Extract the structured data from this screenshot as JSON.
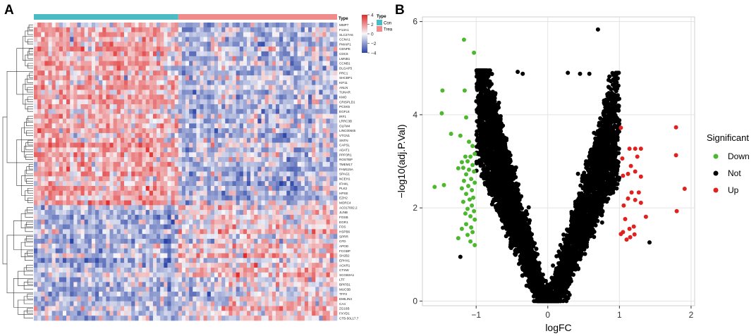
{
  "panels": {
    "a": "A",
    "b": "B"
  },
  "chart_data": [
    {
      "type": "heatmap",
      "title": "",
      "annotation": {
        "title": "Type",
        "groups": [
          {
            "name": "Con",
            "color": "#4DBBC4",
            "count": 40
          },
          {
            "name": "Trea",
            "color": "#F08B8B",
            "count": 44
          }
        ]
      },
      "colorbar": {
        "min": -4,
        "max": 4,
        "ticks": [
          4,
          2,
          0,
          -2,
          -4
        ],
        "low_color": "#2A43A6",
        "mid_color": "#F7F7FA",
        "high_color": "#E02A2A"
      },
      "genes": [
        "MMP7",
        "F13A1",
        "SLC27A6",
        "CCNA1",
        "PMAIP1",
        "CENPE",
        "CDC6",
        "LMNB1",
        "CCNB1",
        "DLGAP5",
        "PRC1",
        "SHCBP1",
        "KIF11",
        "ANLN",
        "TUNAR",
        "KMO",
        "CRISPLD1",
        "PCSK5",
        "EGFL6",
        "IRF1",
        "LRRC3B",
        "OLFM4",
        "LINC00645",
        "VTCN1",
        "SNTN",
        "CAPSL",
        "ADAT1",
        "PPP3R1",
        "ROSTBP",
        "TMEM17",
        "FAM115A",
        "SPAG1",
        "NCEH1",
        "IFI44L",
        "PLK2",
        "HPSE",
        "EZH2",
        "MORC4",
        "AC017002.2",
        "JUNB",
        "FOSB",
        "EGR1",
        "FOS",
        "HSPB6",
        "SPRR",
        "CFD",
        "APOD",
        "FCGBP",
        "SH2B2",
        "EPHX1",
        "ACKR1",
        "CTSW",
        "SCGB3A1",
        "LTF",
        "BPIFB1",
        "MUC5B",
        "TFF3",
        "EMILIN3",
        "CA4",
        "ZG16B",
        "FXYD1",
        "CTB-50L17.7"
      ]
    },
    {
      "type": "scatter",
      "subtype": "volcano",
      "xlabel": "logFC",
      "ylabel": "−log10(adj.P.Val)",
      "xlim": [
        -1.75,
        2.05
      ],
      "ylim": [
        -0.1,
        6.1
      ],
      "xticks": [
        -1,
        0,
        1,
        2
      ],
      "xtick_labels": [
        "−1",
        "0",
        "1",
        "2"
      ],
      "yticks": [
        0,
        2,
        4,
        6
      ],
      "grid": true,
      "legend": {
        "title": "Significant",
        "position": "right",
        "entries": [
          {
            "name": "Down",
            "color": "#4CB82E"
          },
          {
            "name": "Not",
            "color": "#000000"
          },
          {
            "name": "Up",
            "color": "#E0211F"
          }
        ]
      },
      "series": [
        {
          "name": "Down",
          "color": "#4CB82E",
          "points": [
            [
              -1.17,
              5.61
            ],
            [
              -1.03,
              5.33
            ],
            [
              -1.47,
              4.52
            ],
            [
              -1.16,
              4.52
            ],
            [
              -1.48,
              4.03
            ],
            [
              -1.14,
              3.94
            ],
            [
              -1.35,
              3.59
            ],
            [
              -1.22,
              3.55
            ],
            [
              -1.1,
              3.42
            ],
            [
              -1.05,
              3.33
            ],
            [
              -1.15,
              3.1
            ],
            [
              -1.08,
              3.1
            ],
            [
              -1.02,
              3.16
            ],
            [
              -1.12,
              3.0
            ],
            [
              -1.2,
              2.98
            ],
            [
              -1.05,
              2.92
            ],
            [
              -1.18,
              2.86
            ],
            [
              -1.1,
              2.82
            ],
            [
              -1.03,
              2.78
            ],
            [
              -1.25,
              2.85
            ],
            [
              -1.14,
              2.72
            ],
            [
              -1.07,
              2.62
            ],
            [
              -1.17,
              2.58
            ],
            [
              -1.02,
              2.54
            ],
            [
              -1.11,
              2.47
            ],
            [
              -1.2,
              2.42
            ],
            [
              -1.06,
              2.38
            ],
            [
              -1.58,
              2.45
            ],
            [
              -1.45,
              2.49
            ],
            [
              -1.14,
              2.3
            ],
            [
              -1.04,
              2.22
            ],
            [
              -1.09,
              2.18
            ],
            [
              -1.18,
              2.13
            ],
            [
              -1.06,
              2.05
            ],
            [
              -1.12,
              1.98
            ],
            [
              -1.03,
              1.93
            ],
            [
              -1.15,
              1.88
            ],
            [
              -1.08,
              1.82
            ],
            [
              -1.02,
              1.75
            ],
            [
              -1.14,
              1.65
            ],
            [
              -1.07,
              1.58
            ],
            [
              -1.2,
              1.55
            ],
            [
              -1.05,
              1.48
            ],
            [
              -1.12,
              1.42
            ],
            [
              -1.25,
              1.35
            ],
            [
              -1.08,
              1.28
            ],
            [
              -1.02,
              1.2
            ]
          ]
        },
        {
          "name": "Up",
          "color": "#E0211F",
          "points": [
            [
              1.02,
              3.72
            ],
            [
              1.79,
              3.73
            ],
            [
              1.14,
              3.27
            ],
            [
              1.22,
              3.27
            ],
            [
              1.3,
              3.27
            ],
            [
              1.79,
              3.13
            ],
            [
              1.25,
              3.1
            ],
            [
              1.04,
              3.06
            ],
            [
              1.16,
              2.9
            ],
            [
              1.22,
              2.78
            ],
            [
              1.12,
              2.73
            ],
            [
              1.3,
              2.67
            ],
            [
              1.05,
              2.69
            ],
            [
              1.91,
              2.41
            ],
            [
              1.17,
              2.33
            ],
            [
              1.27,
              2.33
            ],
            [
              1.12,
              2.2
            ],
            [
              1.22,
              2.17
            ],
            [
              1.3,
              2.11
            ],
            [
              1.06,
              2.05
            ],
            [
              1.37,
              1.81
            ],
            [
              1.08,
              1.76
            ],
            [
              1.8,
              1.93
            ],
            [
              1.2,
              1.6
            ],
            [
              1.14,
              1.55
            ],
            [
              1.05,
              1.48
            ],
            [
              1.02,
              1.44
            ],
            [
              1.21,
              1.43
            ],
            [
              1.15,
              1.37
            ],
            [
              1.1,
              1.32
            ]
          ]
        },
        {
          "name": "Not",
          "color": "#000000",
          "points": [
            [
              0.7,
              5.83
            ],
            [
              -1.22,
              0.95
            ],
            [
              1.42,
              1.26
            ],
            [
              -0.42,
              4.92
            ],
            [
              -0.35,
              4.88
            ],
            [
              0.28,
              4.9
            ],
            [
              0.45,
              4.88
            ],
            [
              0.58,
              4.88
            ]
          ]
        }
      ]
    }
  ]
}
